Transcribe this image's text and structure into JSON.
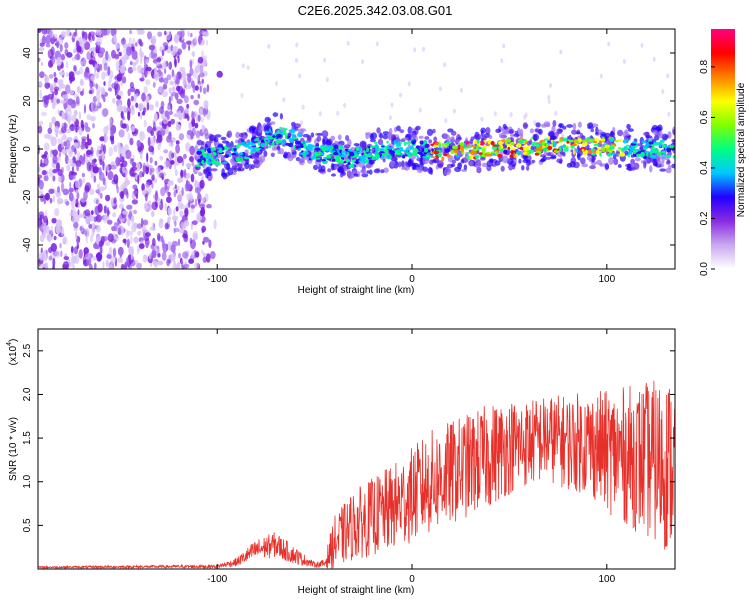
{
  "title": "C2E6.2025.342.03.08.G01",
  "chart_data": [
    {
      "type": "heatmap",
      "xlabel": "Height of straight line (km)",
      "ylabel": "Frequency (Hz)",
      "xlim": [
        -192,
        135
      ],
      "ylim": [
        -50,
        50
      ],
      "xticks": [
        -100,
        0,
        100
      ],
      "yticks": [
        -40,
        -20,
        0,
        20,
        40
      ],
      "noise_region": [
        -192,
        -105
      ],
      "signal_ridge": {
        "x": [
          -110,
          -100,
          -90,
          -80,
          -70,
          -60,
          -50,
          -40,
          -30,
          -20,
          -10,
          0,
          20,
          40,
          60,
          80,
          100,
          120,
          135
        ],
        "freq": [
          -4,
          -3,
          -2,
          1,
          6,
          4,
          -3,
          -2,
          -4,
          -1,
          0,
          0,
          -1,
          0,
          1,
          2,
          1,
          0,
          0
        ]
      },
      "colorbar": {
        "label": "Normalized spectral amplitude",
        "range": [
          0,
          0.95
        ],
        "ticks": [
          "0.0",
          "0.2",
          "0.4",
          "0.6",
          "0.8"
        ],
        "colors": [
          "#ffffff",
          "#c9a8f0",
          "#8a2be2",
          "#2200ff",
          "#00c8ff",
          "#00ff80",
          "#80ff00",
          "#ffff00",
          "#ff8000",
          "#ff0000",
          "#ff0080"
        ]
      }
    },
    {
      "type": "line",
      "xlabel": "Height of straight line (km)",
      "ylabel": "SNR (10 * v/v)",
      "y_multiplier": "(x10",
      "y_multiplier_exp": "4",
      "y_multiplier_close": ")",
      "xlim": [
        -192,
        135
      ],
      "ylim": [
        0,
        2.75
      ],
      "xticks": [
        -100,
        0,
        100
      ],
      "yticks": [
        "0.5",
        "1.0",
        "1.5",
        "2.0",
        "2.5"
      ],
      "series": [
        {
          "name": "SNR",
          "color": "#e8302a",
          "envelope_x": [
            -192,
            -100,
            -90,
            -80,
            -70,
            -60,
            -50,
            -45,
            -40,
            -30,
            -20,
            -10,
            0,
            10,
            20,
            30,
            40,
            50,
            60,
            70,
            80,
            90,
            100,
            110,
            120,
            130,
            135
          ],
          "envelope_mean": [
            0.02,
            0.03,
            0.08,
            0.22,
            0.28,
            0.15,
            0.05,
            0.06,
            0.3,
            0.5,
            0.6,
            0.7,
            0.85,
            1.0,
            1.1,
            1.2,
            1.3,
            1.4,
            1.45,
            1.5,
            1.45,
            1.45,
            1.35,
            1.3,
            1.25,
            1.2,
            1.2
          ],
          "envelope_spread": [
            0.01,
            0.02,
            0.05,
            0.12,
            0.15,
            0.1,
            0.03,
            0.05,
            0.3,
            0.4,
            0.45,
            0.5,
            0.55,
            0.6,
            0.6,
            0.6,
            0.6,
            0.55,
            0.5,
            0.5,
            0.55,
            0.6,
            0.7,
            0.8,
            0.9,
            1.0,
            1.0
          ]
        }
      ]
    }
  ]
}
